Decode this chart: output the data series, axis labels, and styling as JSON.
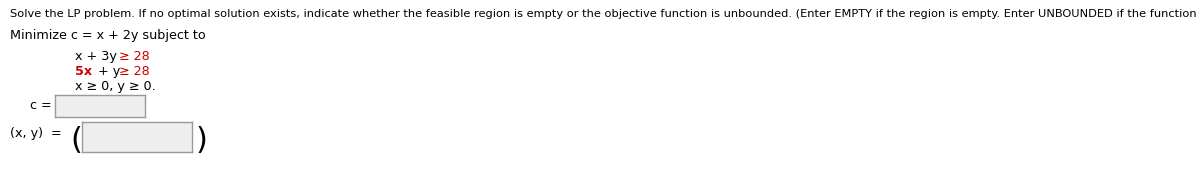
{
  "header": "Solve the LP problem. If no optimal solution exists, indicate whether the feasible region is empty or the objective function is unbounded. (Enter EMPTY if the region is empty. Enter UNBOUNDED if the function is unbounded.)",
  "minimize_label": "Minimize c = x + 2y subject to",
  "c1_black": "x + 3y",
  "c1_red": "≥ 28",
  "c2_red1": "5x",
  "c2_black": " + y",
  "c2_red2": "≥ 28",
  "c3": "x ≥ 0, y ≥ 0.",
  "c_label": "c =",
  "xy_label": "(x, y)  =",
  "bg_color": "#ffffff",
  "text_color": "#000000",
  "red_color": "#cc0000",
  "box_fill": "#eeeeee",
  "box_edge": "#999999",
  "font_size_header": 8.2,
  "font_size_body": 9.2,
  "font_size_constraints": 9.2
}
